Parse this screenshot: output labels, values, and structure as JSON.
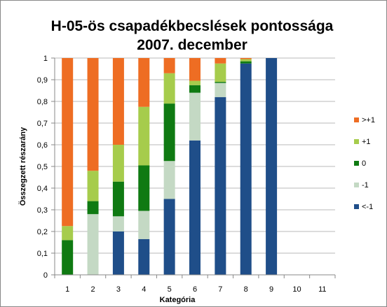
{
  "chart_data": {
    "type": "bar",
    "stacked": true,
    "title_line1": "H-05-ös csapadékbecslések pontossága",
    "title_line2": "2007. december",
    "xlabel": "Kategória",
    "ylabel": "Összegzett részarány",
    "ylim": [
      0,
      1
    ],
    "y_ticks": [
      "0",
      "0,1",
      "0,2",
      "0,3",
      "0,4",
      "0,5",
      "0,6",
      "0,7",
      "0,8",
      "0,9",
      "1"
    ],
    "categories": [
      "1",
      "2",
      "3",
      "4",
      "5",
      "6",
      "7",
      "8",
      "9",
      "10",
      "11"
    ],
    "grid": true,
    "legend_position": "right",
    "series": [
      {
        "name": "<-1",
        "color": "#1f4e89",
        "values": [
          0,
          0,
          0.2,
          0.165,
          0.35,
          0.62,
          0.82,
          0.975,
          1.0,
          0,
          0
        ]
      },
      {
        "name": "-1",
        "color": "#c4d9c4",
        "values": [
          0,
          0.28,
          0.07,
          0.13,
          0.175,
          0.22,
          0.065,
          0,
          0,
          0,
          0
        ]
      },
      {
        "name": "0",
        "color": "#0f7a12",
        "values": [
          0.16,
          0.06,
          0.16,
          0.21,
          0.265,
          0.035,
          0.005,
          0.01,
          0,
          0,
          0
        ]
      },
      {
        "name": "+1",
        "color": "#a6cc4c",
        "values": [
          0.065,
          0.14,
          0.17,
          0.27,
          0.14,
          0.02,
          0.085,
          0.01,
          0,
          0,
          0
        ]
      },
      {
        "name": ">+1",
        "color": "#ee6d23",
        "values": [
          0.775,
          0.52,
          0.4,
          0.225,
          0.07,
          0.105,
          0.025,
          0.005,
          0,
          0,
          0
        ]
      }
    ],
    "legend_order": [
      ">+1",
      "+1",
      "0",
      "-1",
      "<-1"
    ]
  }
}
